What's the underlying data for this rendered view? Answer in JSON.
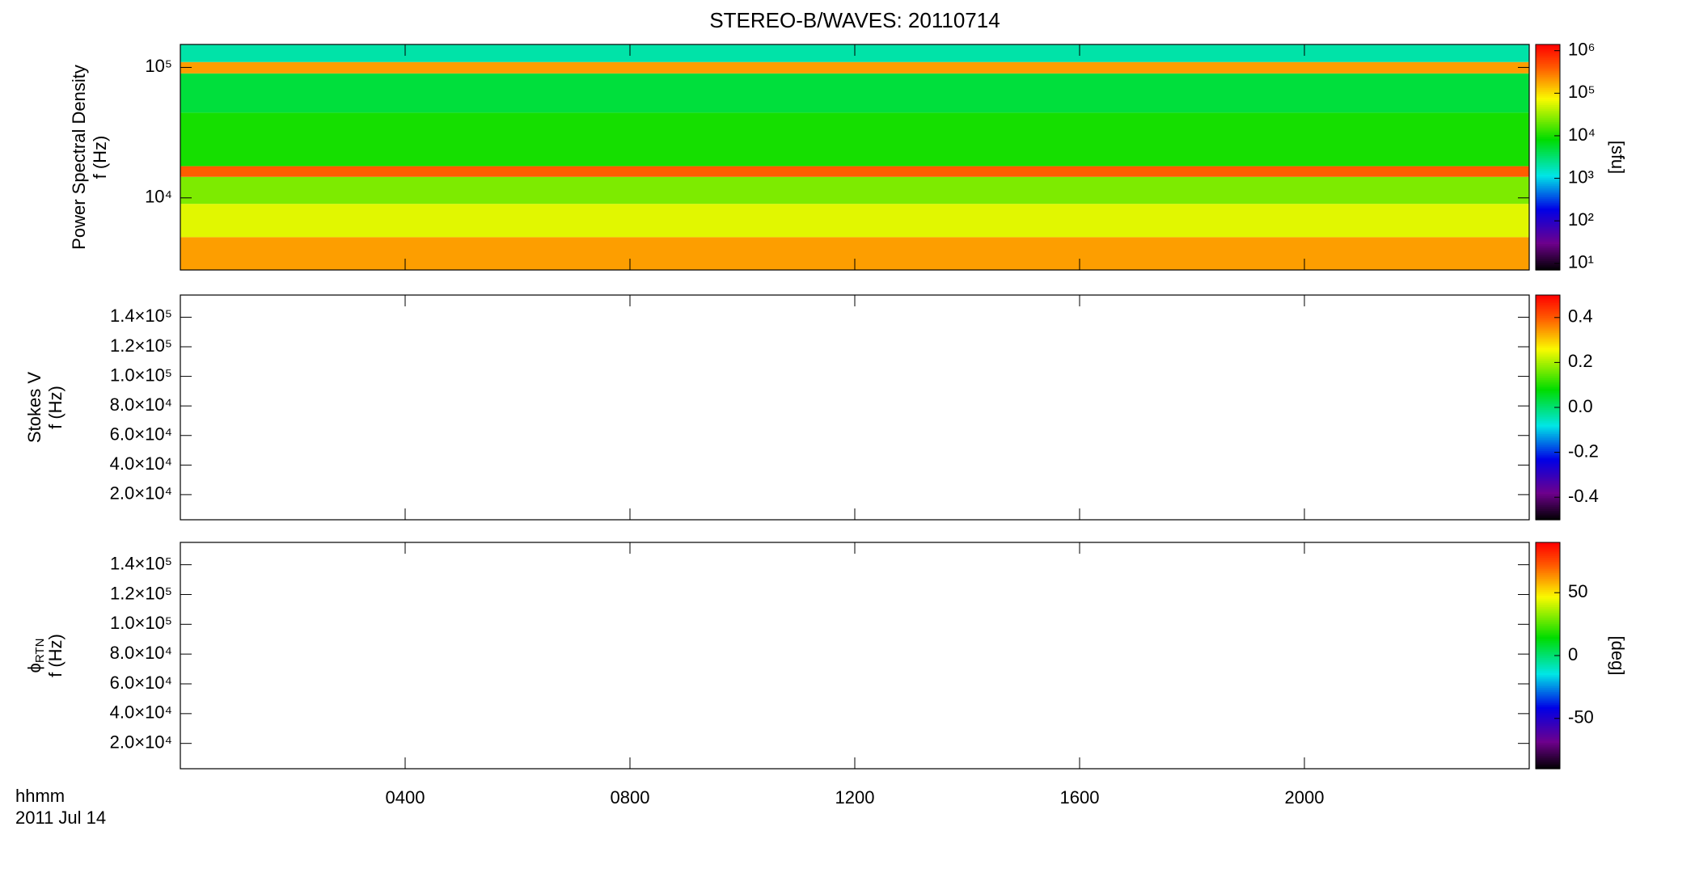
{
  "chart_data": [
    {
      "type": "heatmap",
      "title": "STEREO-B/WAVES: 20110714",
      "ylabel": [
        "Power Spectral Density",
        "f (Hz)"
      ],
      "xlim": [
        0,
        24
      ],
      "xticks": [
        4,
        8,
        12,
        16,
        20
      ],
      "ylog": true,
      "ylim": [
        2800,
        150000
      ],
      "yticks": [
        {
          "value": 10000,
          "label": "10⁴"
        },
        {
          "value": 100000,
          "label": "10⁵"
        }
      ],
      "y_edges": [
        2800,
        5000,
        9000,
        14500,
        17500,
        45000,
        90000,
        110000,
        150000
      ],
      "values": [
        200000,
        60000,
        25000,
        400000,
        10000,
        5000,
        200000,
        2000
      ],
      "clog": true,
      "clim": [
        7,
        1400000
      ],
      "cticks": [
        {
          "value": 10,
          "label": "10¹"
        },
        {
          "value": 100,
          "label": "10²"
        },
        {
          "value": 1000,
          "label": "10³"
        },
        {
          "value": 10000,
          "label": "10⁴"
        },
        {
          "value": 100000,
          "label": "10⁵"
        },
        {
          "value": 1000000,
          "label": "10⁶"
        }
      ],
      "clabel": "[sfu]"
    },
    {
      "type": "heatmap",
      "ylabel": [
        "Stokes V",
        "f (Hz)"
      ],
      "xlim": [
        0,
        24
      ],
      "xticks": [
        4,
        8,
        12,
        16,
        20
      ],
      "ylim": [
        3000,
        155000
      ],
      "yticks": [
        {
          "value": 20000,
          "label": "2.0×10⁴"
        },
        {
          "value": 40000,
          "label": "4.0×10⁴"
        },
        {
          "value": 60000,
          "label": "6.0×10⁴"
        },
        {
          "value": 80000,
          "label": "8.0×10⁴"
        },
        {
          "value": 100000,
          "label": "1.0×10⁵"
        },
        {
          "value": 120000,
          "label": "1.2×10⁵"
        },
        {
          "value": 140000,
          "label": "1.4×10⁵"
        }
      ],
      "clim": [
        -0.5,
        0.5
      ],
      "cticks": [
        -0.4,
        -0.2,
        {
          "value": 0,
          "label": "0.0"
        },
        0.2,
        0.4
      ]
    },
    {
      "type": "heatmap",
      "ylabel": [
        "ϕ",
        "f (Hz)"
      ],
      "ylabel_sub": "RTN",
      "xlabel": [
        "hhmm",
        "2011 Jul 14"
      ],
      "xlim": [
        0,
        24
      ],
      "xticks": [
        {
          "value": 4,
          "label": "0400"
        },
        {
          "value": 8,
          "label": "0800"
        },
        {
          "value": 12,
          "label": "1200"
        },
        {
          "value": 16,
          "label": "1600"
        },
        {
          "value": 20,
          "label": "2000"
        }
      ],
      "ylim": [
        3000,
        155000
      ],
      "yticks": [
        {
          "value": 20000,
          "label": "2.0×10⁴"
        },
        {
          "value": 40000,
          "label": "4.0×10⁴"
        },
        {
          "value": 60000,
          "label": "6.0×10⁴"
        },
        {
          "value": 80000,
          "label": "8.0×10⁴"
        },
        {
          "value": 100000,
          "label": "1.0×10⁵"
        },
        {
          "value": 120000,
          "label": "1.2×10⁵"
        },
        {
          "value": 140000,
          "label": "1.4×10⁵"
        }
      ],
      "clim": [
        -90,
        90
      ],
      "cticks": [
        -50,
        0,
        50
      ],
      "clabel": "[deg]"
    }
  ]
}
